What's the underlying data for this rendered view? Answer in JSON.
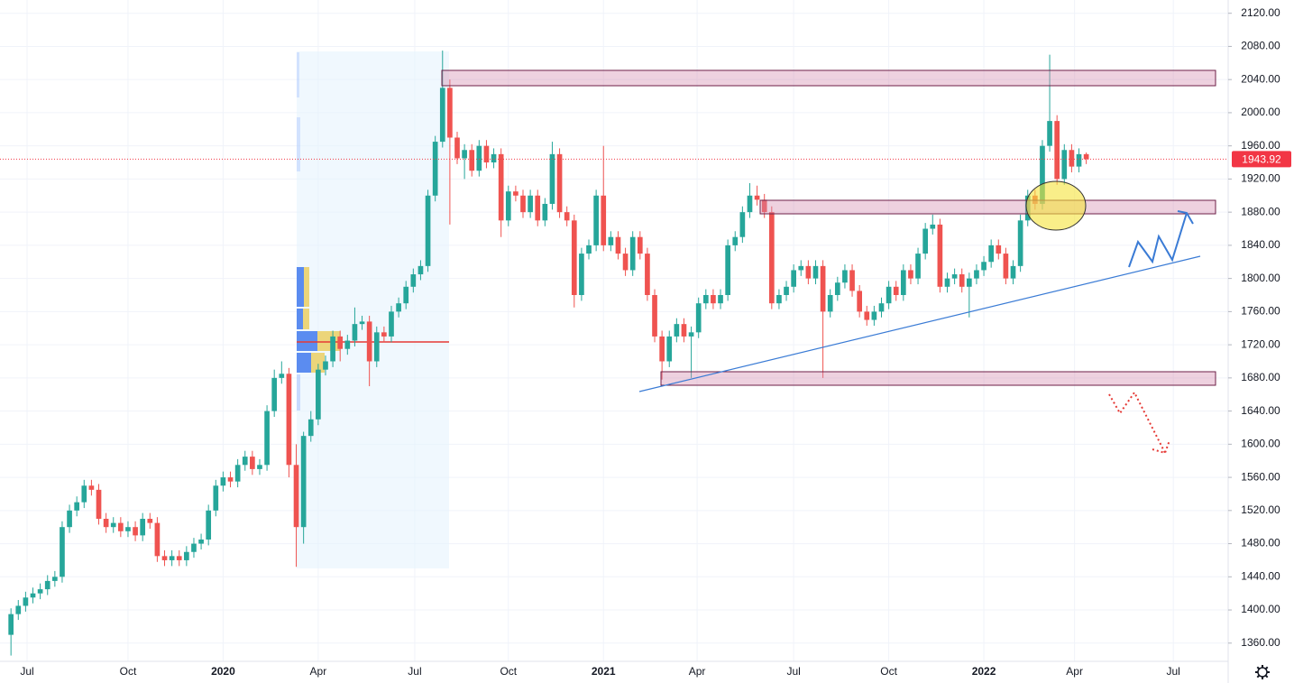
{
  "chart_data": {
    "type": "candlestick",
    "up_color": "#26a69a",
    "down_color": "#ef5350",
    "last_price_color": "#f23645",
    "grid": true,
    "ylim": [
      1338,
      2136
    ],
    "xlim": [
      -1.5,
      166.4
    ],
    "yticks": [
      {
        "value": 1360,
        "label": "1360.00"
      },
      {
        "value": 1400,
        "label": "1400.00"
      },
      {
        "value": 1440,
        "label": "1440.00"
      },
      {
        "value": 1480,
        "label": "1480.00"
      },
      {
        "value": 1520,
        "label": "1520.00"
      },
      {
        "value": 1560,
        "label": "1560.00"
      },
      {
        "value": 1600,
        "label": "1600.00"
      },
      {
        "value": 1640,
        "label": "1640.00"
      },
      {
        "value": 1680,
        "label": "1680.00"
      },
      {
        "value": 1720,
        "label": "1720.00"
      },
      {
        "value": 1760,
        "label": "1760.00"
      },
      {
        "value": 1800,
        "label": "1800.00"
      },
      {
        "value": 1840,
        "label": "1840.00"
      },
      {
        "value": 1880,
        "label": "1880.00"
      },
      {
        "value": 1920,
        "label": "1920.00"
      },
      {
        "value": 1960,
        "label": "1960.00"
      },
      {
        "value": 2000,
        "label": "2000.00"
      },
      {
        "value": 2040,
        "label": "2040.00"
      },
      {
        "value": 2080,
        "label": "2080.00"
      },
      {
        "value": 2120,
        "label": "2120.00"
      }
    ],
    "xticks": [
      {
        "value": 2.2,
        "label": "Jul"
      },
      {
        "value": 16,
        "label": "Oct"
      },
      {
        "value": 29,
        "label": "2020"
      },
      {
        "value": 42,
        "label": "Apr"
      },
      {
        "value": 55.2,
        "label": "Jul"
      },
      {
        "value": 68,
        "label": "Oct"
      },
      {
        "value": 81,
        "label": "2021"
      },
      {
        "value": 93.8,
        "label": "Apr"
      },
      {
        "value": 107,
        "label": "Jul"
      },
      {
        "value": 120,
        "label": "Oct"
      },
      {
        "value": 133,
        "label": "2022"
      },
      {
        "value": 145.4,
        "label": "Apr"
      },
      {
        "value": 158.9,
        "label": "Jul"
      }
    ],
    "open": [
      1370,
      1395,
      1405,
      1415,
      1420,
      1425,
      1435,
      1440,
      1500,
      1520,
      1530,
      1550,
      1545,
      1510,
      1500,
      1505,
      1495,
      1500,
      1490,
      1510,
      1505,
      1465,
      1460,
      1465,
      1460,
      1470,
      1480,
      1485,
      1520,
      1550,
      1560,
      1555,
      1575,
      1585,
      1570,
      1575,
      1640,
      1680,
      1685,
      1575,
      1500,
      1610,
      1630,
      1690,
      1700,
      1730,
      1715,
      1725,
      1745,
      1748,
      1700,
      1735,
      1730,
      1760,
      1770,
      1790,
      1805,
      1815,
      1900,
      1965,
      2030,
      1970,
      1945,
      1955,
      1930,
      1960,
      1940,
      1950,
      1870,
      1905,
      1900,
      1880,
      1900,
      1870,
      1890,
      1950,
      1880,
      1870,
      1780,
      1830,
      1840,
      1900,
      1840,
      1850,
      1830,
      1810,
      1850,
      1830,
      1780,
      1730,
      1700,
      1730,
      1745,
      1730,
      1735,
      1770,
      1780,
      1770,
      1780,
      1840,
      1850,
      1880,
      1900,
      1895,
      1880,
      1770,
      1780,
      1790,
      1810,
      1815,
      1800,
      1815,
      1760,
      1780,
      1795,
      1810,
      1785,
      1760,
      1750,
      1760,
      1770,
      1790,
      1780,
      1810,
      1800,
      1830,
      1860,
      1865,
      1790,
      1800,
      1805,
      1790,
      1800,
      1810,
      1820,
      1840,
      1830,
      1800,
      1815,
      1870,
      1900,
      1890,
      1960,
      1990,
      1920,
      1955,
      1935,
      1950
    ],
    "high": [
      1402,
      1412,
      1422,
      1427,
      1432,
      1442,
      1447,
      1507,
      1527,
      1537,
      1557,
      1557,
      1552,
      1517,
      1512,
      1512,
      1507,
      1507,
      1517,
      1517,
      1512,
      1472,
      1472,
      1472,
      1477,
      1487,
      1492,
      1527,
      1557,
      1567,
      1567,
      1582,
      1592,
      1592,
      1582,
      1647,
      1690,
      1700,
      1692,
      1600,
      1615,
      1640,
      1697,
      1707,
      1737,
      1737,
      1732,
      1765,
      1755,
      1755,
      1742,
      1742,
      1767,
      1777,
      1797,
      1812,
      1822,
      1907,
      1972,
      2075,
      2040,
      1977,
      1962,
      1962,
      1967,
      1967,
      1957,
      1957,
      1912,
      1912,
      1907,
      1907,
      1907,
      1897,
      1965,
      1957,
      1887,
      1877,
      1837,
      1847,
      1907,
      1960,
      1857,
      1857,
      1837,
      1857,
      1857,
      1837,
      1787,
      1737,
      1737,
      1752,
      1752,
      1742,
      1777,
      1787,
      1787,
      1787,
      1847,
      1857,
      1887,
      1915,
      1912,
      1902,
      1887,
      1787,
      1797,
      1817,
      1822,
      1822,
      1822,
      1822,
      1787,
      1802,
      1817,
      1817,
      1792,
      1767,
      1767,
      1777,
      1797,
      1797,
      1817,
      1817,
      1837,
      1867,
      1877,
      1872,
      1807,
      1812,
      1812,
      1807,
      1817,
      1827,
      1847,
      1847,
      1837,
      1822,
      1877,
      1907,
      1907,
      1967,
      2070,
      1997,
      1962,
      1962,
      1957,
      1952
    ],
    "low": [
      1345,
      1388,
      1398,
      1408,
      1413,
      1418,
      1428,
      1433,
      1493,
      1513,
      1523,
      1538,
      1503,
      1493,
      1493,
      1488,
      1488,
      1483,
      1483,
      1498,
      1458,
      1453,
      1453,
      1453,
      1453,
      1463,
      1473,
      1478,
      1513,
      1543,
      1548,
      1548,
      1568,
      1563,
      1563,
      1568,
      1633,
      1673,
      1560,
      1452,
      1480,
      1603,
      1623,
      1683,
      1693,
      1700,
      1708,
      1718,
      1738,
      1670,
      1693,
      1723,
      1723,
      1753,
      1763,
      1783,
      1798,
      1808,
      1893,
      1958,
      1865,
      1938,
      1920,
      1923,
      1923,
      1933,
      1933,
      1850,
      1863,
      1893,
      1873,
      1873,
      1863,
      1863,
      1883,
      1873,
      1863,
      1765,
      1773,
      1823,
      1833,
      1833,
      1833,
      1823,
      1803,
      1803,
      1823,
      1773,
      1723,
      1678,
      1693,
      1723,
      1723,
      1680,
      1728,
      1763,
      1763,
      1763,
      1773,
      1833,
      1843,
      1873,
      1888,
      1873,
      1763,
      1763,
      1773,
      1783,
      1803,
      1793,
      1793,
      1680,
      1753,
      1773,
      1788,
      1778,
      1753,
      1743,
      1743,
      1753,
      1763,
      1773,
      1773,
      1793,
      1793,
      1823,
      1853,
      1783,
      1783,
      1793,
      1783,
      1753,
      1793,
      1803,
      1813,
      1823,
      1793,
      1793,
      1808,
      1863,
      1883,
      1883,
      1953,
      1913,
      1913,
      1928,
      1928,
      1938
    ],
    "close": [
      1395,
      1405,
      1415,
      1420,
      1425,
      1435,
      1440,
      1500,
      1520,
      1530,
      1550,
      1545,
      1510,
      1500,
      1505,
      1495,
      1500,
      1490,
      1510,
      1505,
      1465,
      1460,
      1465,
      1460,
      1470,
      1480,
      1485,
      1520,
      1550,
      1560,
      1555,
      1575,
      1585,
      1570,
      1575,
      1640,
      1680,
      1685,
      1575,
      1500,
      1610,
      1630,
      1690,
      1700,
      1730,
      1715,
      1725,
      1745,
      1748,
      1700,
      1735,
      1730,
      1760,
      1770,
      1790,
      1805,
      1815,
      1900,
      1965,
      2030,
      1970,
      1945,
      1955,
      1930,
      1960,
      1940,
      1950,
      1870,
      1905,
      1900,
      1880,
      1900,
      1870,
      1890,
      1950,
      1880,
      1870,
      1780,
      1830,
      1840,
      1900,
      1840,
      1850,
      1830,
      1810,
      1850,
      1830,
      1780,
      1730,
      1700,
      1730,
      1745,
      1730,
      1735,
      1770,
      1780,
      1770,
      1780,
      1840,
      1850,
      1880,
      1900,
      1895,
      1880,
      1770,
      1780,
      1790,
      1810,
      1815,
      1800,
      1815,
      1760,
      1780,
      1795,
      1810,
      1785,
      1760,
      1750,
      1760,
      1770,
      1790,
      1780,
      1810,
      1800,
      1830,
      1860,
      1865,
      1790,
      1800,
      1805,
      1790,
      1800,
      1810,
      1820,
      1840,
      1830,
      1800,
      1815,
      1870,
      1900,
      1890,
      1960,
      1990,
      1920,
      1955,
      1935,
      1950,
      1943.92
    ]
  }
}
